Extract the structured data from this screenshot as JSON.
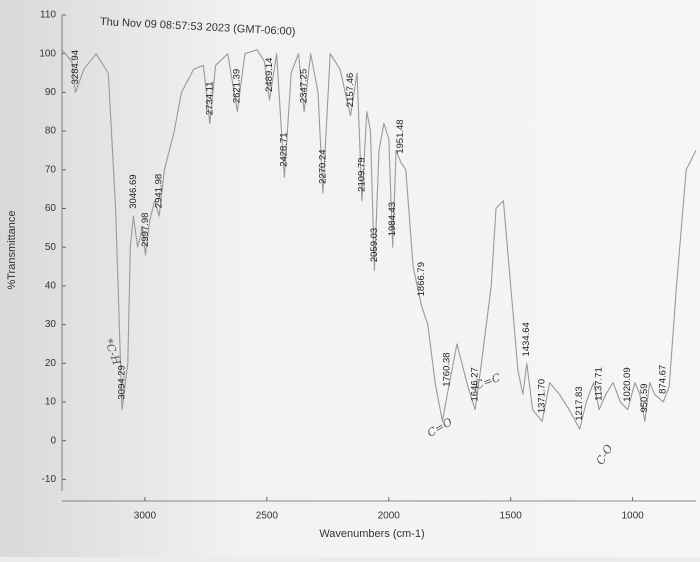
{
  "chart_data": {
    "type": "line",
    "title": "Thu Nov 09 08:57:53 2023 (GMT-06:00)",
    "x_label": "Wavenumbers (cm-1)",
    "y_label": "%Transmittance",
    "xlim": [
      3340,
      740
    ],
    "xticks": [
      3000,
      2500,
      2000,
      1500,
      1000
    ],
    "ylim": [
      -13,
      110
    ],
    "yticks": [
      -10,
      0,
      10,
      20,
      30,
      40,
      50,
      60,
      70,
      80,
      90,
      100,
      110
    ],
    "grid": false,
    "color": "#9a9a9a",
    "x": [
      3340,
      3300,
      3285,
      3250,
      3200,
      3150,
      3120,
      3094,
      3070,
      3060,
      3047,
      3030,
      3010,
      2998,
      2980,
      2960,
      2942,
      2920,
      2880,
      2850,
      2800,
      2760,
      2734,
      2710,
      2660,
      2621,
      2590,
      2540,
      2510,
      2489,
      2460,
      2428,
      2400,
      2370,
      2347,
      2320,
      2290,
      2270,
      2240,
      2200,
      2157,
      2130,
      2110,
      2090,
      2075,
      2059,
      2040,
      2020,
      2000,
      1984,
      1970,
      1951,
      1930,
      1900,
      1866,
      1840,
      1810,
      1780,
      1760,
      1720,
      1680,
      1646,
      1620,
      1580,
      1560,
      1530,
      1500,
      1470,
      1450,
      1434,
      1410,
      1371,
      1340,
      1300,
      1260,
      1217,
      1190,
      1160,
      1137,
      1110,
      1080,
      1050,
      1020,
      990,
      970,
      950,
      930,
      910,
      874,
      850,
      820,
      780,
      740
    ],
    "values": [
      101,
      98,
      90,
      96,
      100,
      95,
      60,
      8,
      20,
      50,
      58,
      50,
      55,
      48,
      57,
      62,
      58,
      70,
      80,
      90,
      96,
      97,
      82,
      97,
      100,
      85,
      100,
      101,
      98,
      88,
      100,
      68,
      95,
      100,
      85,
      100,
      90,
      64,
      100,
      96,
      84,
      95,
      62,
      85,
      80,
      44,
      75,
      82,
      78,
      50,
      75,
      72,
      70,
      45,
      35,
      30,
      15,
      5,
      12,
      25,
      15,
      8,
      20,
      40,
      60,
      62,
      40,
      18,
      12,
      20,
      8,
      5,
      15,
      12,
      8,
      3,
      10,
      15,
      8,
      12,
      15,
      10,
      8,
      15,
      12,
      5,
      15,
      12,
      10,
      14,
      40,
      70,
      75
    ],
    "peaks": [
      3284.94,
      3094.29,
      3046.69,
      2997.98,
      2941.98,
      2734.11,
      2621.39,
      2489.14,
      2428.71,
      2347.25,
      2270.24,
      2157.46,
      2109.79,
      2059.03,
      1984.43,
      1951.48,
      1866.79,
      1760.38,
      1646.27,
      1434.64,
      {
        "value": 1371.7,
        "label": "1371.70"
      },
      1217.83,
      1137.71,
      1020.09,
      950.59,
      874.67
    ],
    "annotations": [
      "*C-H",
      "C=O",
      "C=C",
      "C-O"
    ]
  }
}
